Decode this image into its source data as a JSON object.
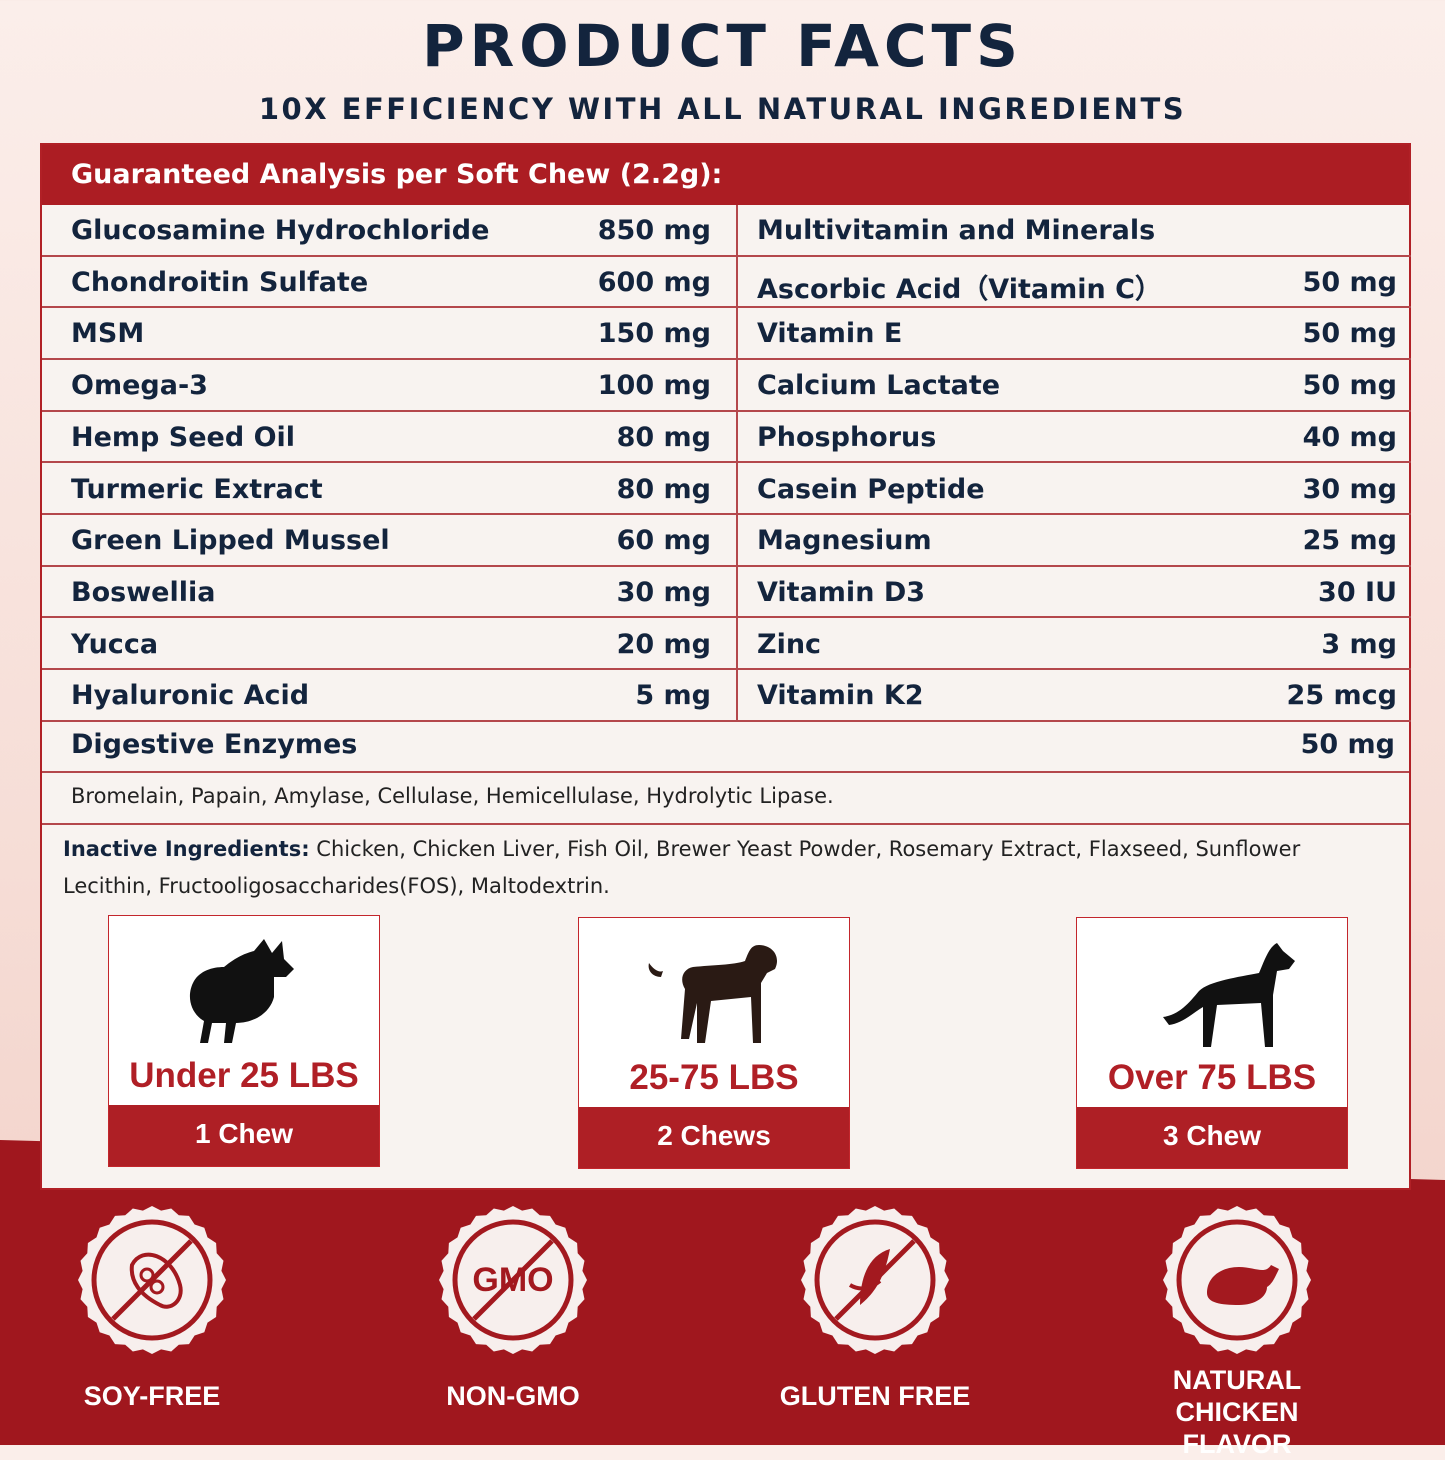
{
  "header": {
    "title": "PRODUCT FACTS",
    "subtitle": "10X EFFICIENCY WITH ALL NATURAL INGREDIENTS"
  },
  "table": {
    "heading": "Guaranteed Analysis per Soft Chew (2.2g):",
    "left": [
      {
        "name": "Glucosamine Hydrochloride",
        "value": "850 mg"
      },
      {
        "name": "Chondroitin Sulfate",
        "value": "600 mg"
      },
      {
        "name": "MSM",
        "value": "150 mg"
      },
      {
        "name": "Omega-3",
        "value": "100 mg"
      },
      {
        "name": "Hemp Seed Oil",
        "value": "80 mg"
      },
      {
        "name": "Turmeric Extract",
        "value": "80 mg"
      },
      {
        "name": "Green Lipped Mussel",
        "value": "60 mg"
      },
      {
        "name": "Boswellia",
        "value": "30 mg"
      },
      {
        "name": "Yucca",
        "value": "20 mg"
      },
      {
        "name": "Hyaluronic Acid",
        "value": "5  mg"
      }
    ],
    "right": [
      {
        "name": "Multivitamin and Minerals",
        "value": ""
      },
      {
        "name": "Ascorbic Acid（Vitamin C）",
        "value": "50 mg"
      },
      {
        "name": "Vitamin E",
        "value": "50 mg"
      },
      {
        "name": "Calcium Lactate",
        "value": "50 mg"
      },
      {
        "name": "Phosphorus",
        "value": "40 mg"
      },
      {
        "name": "Casein Peptide",
        "value": "30 mg"
      },
      {
        "name": "Magnesium",
        "value": "25 mg"
      },
      {
        "name": "Vitamin D3",
        "value": "30 IU"
      },
      {
        "name": "Zinc",
        "value": "3 mg"
      },
      {
        "name": "Vitamin K2",
        "value": "25 mcg"
      }
    ],
    "digestive": {
      "name": "Digestive Enzymes",
      "value": "50 mg"
    },
    "enzymes": "Bromelain, Papain, Amylase, Cellulase, Hemicellulase, Hydrolytic Lipase.",
    "inactive_label": "Inactive Ingredients:",
    "inactive_text": " Chicken, Chicken Liver, Fish Oil, Brewer Yeast Powder, Rosemary Extract, Flaxseed, Sunflower Lecithin, Fructooligosaccharides(FOS), Maltodextrin."
  },
  "dosage": [
    {
      "weight": "Under 25 LBS",
      "dose": "1 Chew",
      "icon": "small-dog-icon"
    },
    {
      "weight": "25-75 LBS",
      "dose": "2 Chews",
      "icon": "medium-dog-icon"
    },
    {
      "weight": "Over 75 LBS",
      "dose": "3 Chew",
      "icon": "large-dog-icon"
    }
  ],
  "badges": [
    {
      "label": "SOY-FREE",
      "icon": "no-soy-icon"
    },
    {
      "label": "NON-GMO",
      "icon": "no-gmo-icon",
      "icon_text": "GMO"
    },
    {
      "label": "GLUTEN FREE",
      "icon": "no-gluten-icon"
    },
    {
      "label": "NATURAL CHICKEN FLAVOR",
      "icon": "chicken-icon"
    }
  ],
  "colors": {
    "brand_red": "#ac1d23",
    "navy": "#13243d",
    "panel": "#f8f3f0"
  }
}
